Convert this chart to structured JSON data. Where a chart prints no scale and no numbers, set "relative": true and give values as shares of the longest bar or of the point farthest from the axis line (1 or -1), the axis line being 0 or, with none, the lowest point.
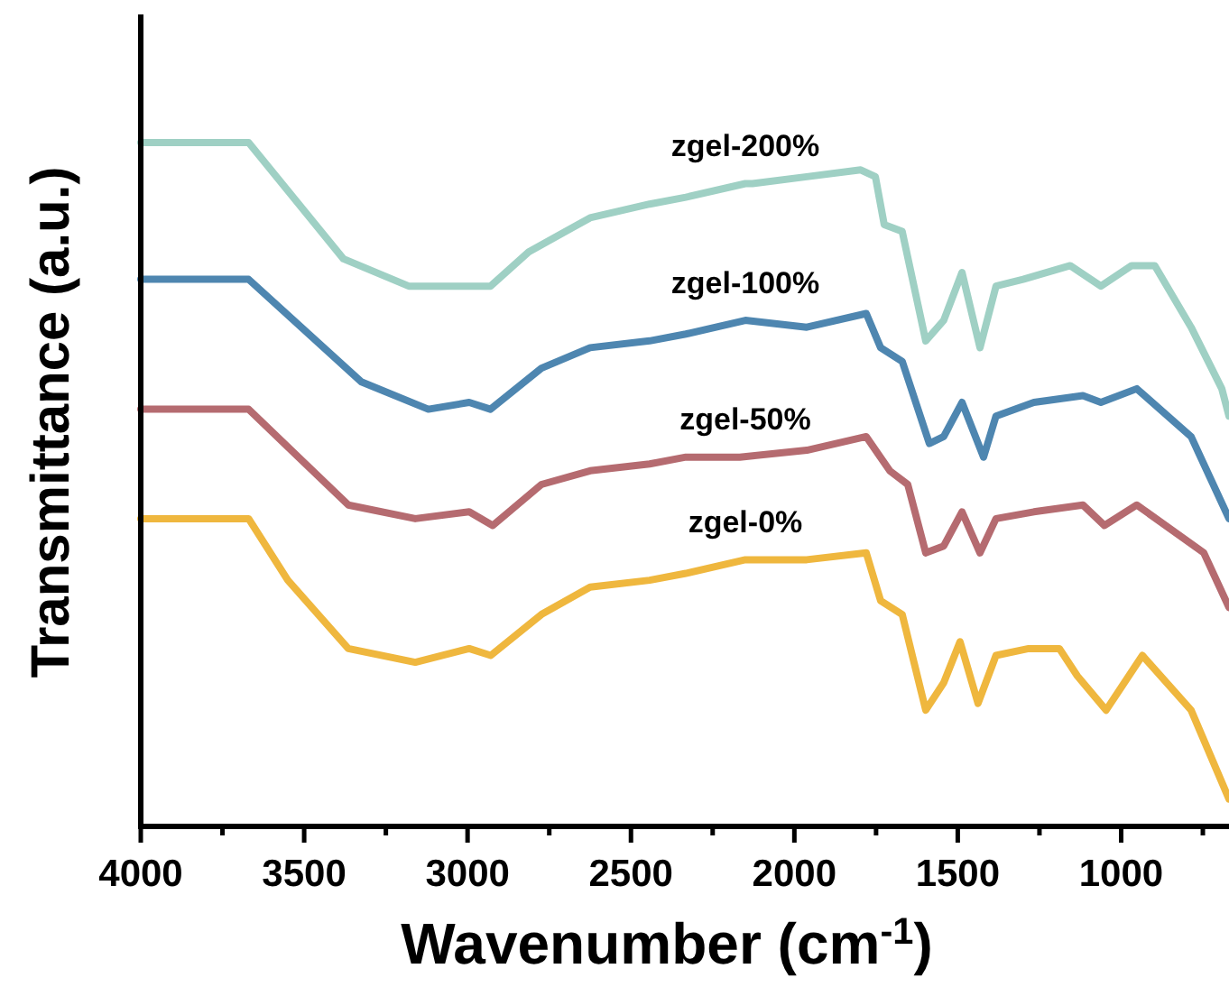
{
  "chart_data": {
    "type": "line",
    "relative": true,
    "xlabel": "Wavenumber (cm$^{-1}$)",
    "ylabel": "Transmittance (a.u.)",
    "xlim": [
      4000,
      670
    ],
    "xticks": [
      4000,
      {
        "value": 3750,
        "label": null
      },
      3500,
      {
        "value": 3250,
        "label": null
      },
      3000,
      {
        "value": 2750,
        "label": null
      },
      2500,
      {
        "value": 2250,
        "label": null
      },
      2000,
      {
        "value": 1750,
        "label": null
      },
      1500,
      {
        "value": 1250,
        "label": null
      },
      1000,
      {
        "value": 750,
        "label": null
      }
    ],
    "grid": false,
    "marker": "none",
    "line_style": "solid",
    "series": [
      {
        "name": "zgel-200%",
        "color": "#9fd0c4",
        "x": [
          4000,
          3670,
          3380,
          3180,
          3035,
          2930,
          2813,
          2625,
          2443,
          2332,
          2150,
          2128,
          1962,
          1797,
          1752,
          1725,
          1670,
          1598,
          1543,
          1487,
          1432,
          1383,
          1300,
          1156,
          1062,
          968,
          897,
          786,
          692,
          670
        ],
        "values": [
          1.0,
          1.0,
          0.83,
          0.79,
          0.79,
          0.79,
          0.84,
          0.89,
          0.91,
          0.92,
          0.94,
          0.94,
          0.95,
          0.96,
          0.95,
          0.88,
          0.87,
          0.71,
          0.74,
          0.81,
          0.7,
          0.79,
          0.8,
          0.82,
          0.79,
          0.82,
          0.82,
          0.73,
          0.64,
          0.6
        ]
      },
      {
        "name": "zgel-100%",
        "color": "#4e86b0",
        "x": [
          4000,
          3670,
          3325,
          3120,
          2995,
          2930,
          2774,
          2625,
          2443,
          2332,
          2150,
          1962,
          1780,
          1736,
          1670,
          1587,
          1543,
          1487,
          1421,
          1383,
          1267,
          1117,
          1062,
          952,
          786,
          670
        ],
        "values": [
          0.8,
          0.8,
          0.65,
          0.61,
          0.62,
          0.61,
          0.67,
          0.7,
          0.71,
          0.72,
          0.74,
          0.73,
          0.75,
          0.7,
          0.68,
          0.56,
          0.57,
          0.62,
          0.54,
          0.6,
          0.62,
          0.63,
          0.62,
          0.64,
          0.57,
          0.45
        ]
      },
      {
        "name": "zgel-50%",
        "color": "#b56b70",
        "x": [
          4000,
          3670,
          3365,
          3160,
          2995,
          2923,
          2774,
          2625,
          2443,
          2332,
          2167,
          1962,
          1780,
          1708,
          1653,
          1598,
          1543,
          1487,
          1432,
          1383,
          1267,
          1117,
          1051,
          952,
          747,
          670
        ],
        "values": [
          0.61,
          0.61,
          0.47,
          0.45,
          0.46,
          0.44,
          0.5,
          0.52,
          0.53,
          0.54,
          0.54,
          0.55,
          0.57,
          0.52,
          0.5,
          0.4,
          0.41,
          0.46,
          0.4,
          0.45,
          0.46,
          0.47,
          0.44,
          0.47,
          0.4,
          0.32
        ]
      },
      {
        "name": "zgel-0%",
        "color": "#efb73e",
        "x": [
          4000,
          3670,
          3550,
          3365,
          3160,
          2995,
          2929,
          2774,
          2625,
          2443,
          2332,
          2150,
          1962,
          1780,
          1736,
          1670,
          1598,
          1543,
          1493,
          1438,
          1383,
          1283,
          1189,
          1134,
          1046,
          935,
          786,
          670
        ],
        "values": [
          0.45,
          0.45,
          0.36,
          0.26,
          0.24,
          0.26,
          0.25,
          0.31,
          0.35,
          0.36,
          0.37,
          0.39,
          0.39,
          0.4,
          0.33,
          0.31,
          0.17,
          0.21,
          0.27,
          0.18,
          0.25,
          0.26,
          0.26,
          0.22,
          0.17,
          0.25,
          0.17,
          0.04
        ]
      }
    ]
  }
}
